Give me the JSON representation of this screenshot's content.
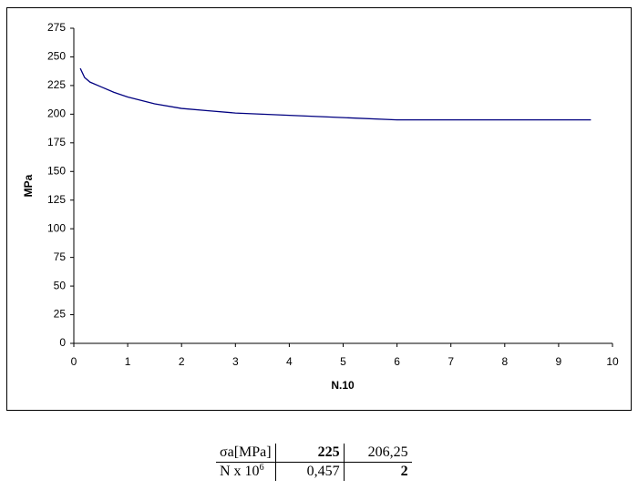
{
  "chart_data": {
    "type": "line",
    "xlabel": "N.10",
    "ylabel": "MPa",
    "x": [
      0.12,
      0.2,
      0.3,
      0.5,
      0.75,
      1,
      1.5,
      2,
      2.5,
      3,
      4,
      5,
      6,
      7,
      8,
      9,
      9.6
    ],
    "values": [
      240,
      232,
      228,
      224,
      219,
      215,
      209,
      205,
      203,
      201,
      199,
      197,
      195,
      195,
      195,
      195,
      195
    ],
    "color": "#000080",
    "xlim": [
      0,
      10
    ],
    "xticks": [
      0,
      1,
      2,
      3,
      4,
      5,
      6,
      7,
      8,
      9,
      10
    ],
    "ylim": [
      0,
      275
    ],
    "yticks": [
      0,
      25,
      50,
      75,
      100,
      125,
      150,
      175,
      200,
      225,
      250,
      275
    ]
  },
  "table": {
    "rows": [
      {
        "label": "σa[MPa]",
        "cells": [
          "225",
          "206,25"
        ]
      },
      {
        "label": "N x 10",
        "label_sup": "6",
        "cells": [
          "0,457",
          "2"
        ]
      }
    ]
  }
}
